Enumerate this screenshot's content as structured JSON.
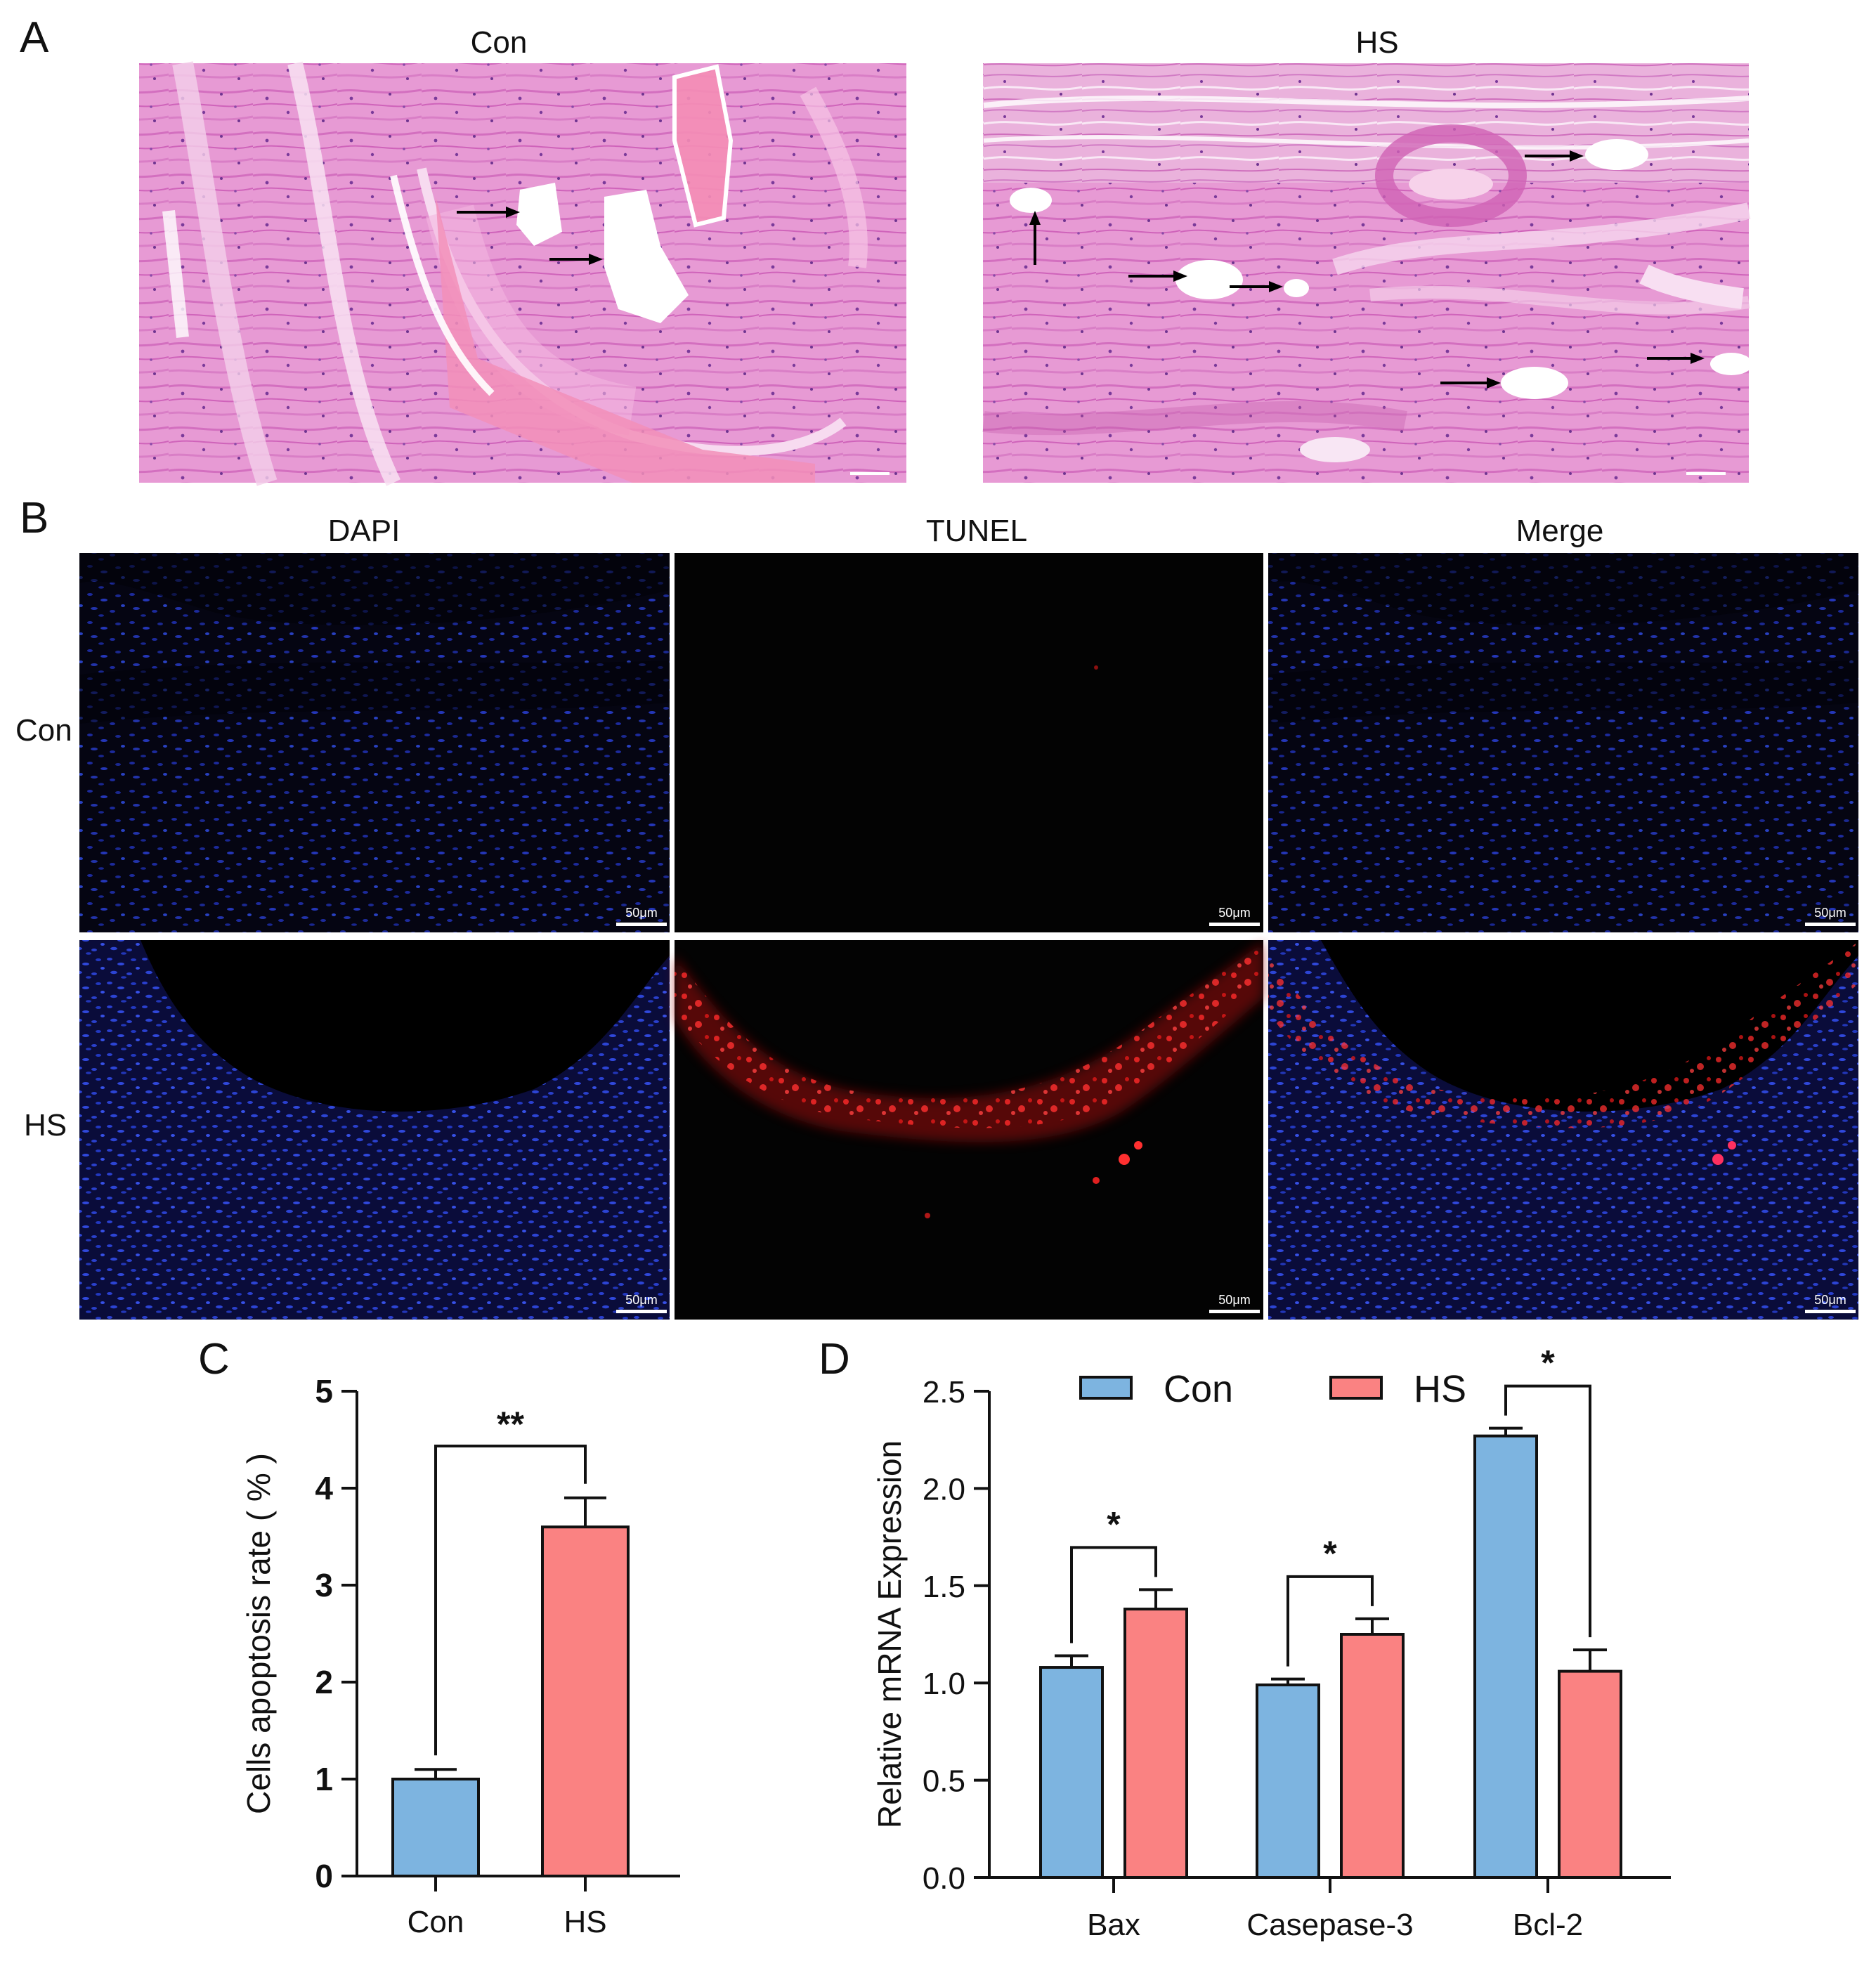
{
  "panels": {
    "a": {
      "label": "A",
      "titles": [
        "Con",
        "HS"
      ]
    },
    "b": {
      "label": "B",
      "columns": [
        "DAPI",
        "TUNEL",
        "Merge"
      ],
      "rows": [
        "Con",
        "HS"
      ],
      "scale_bar": "50μm"
    },
    "c": {
      "label": "C"
    },
    "d": {
      "label": "D"
    }
  },
  "colors": {
    "con": "#7db4e0",
    "hs": "#fa8282",
    "he_stain": "#e38fcf",
    "dapi": "#1e2f9e",
    "tunel": "#ff2222"
  },
  "chart_data": [
    {
      "type": "bar",
      "categories": [
        "Con",
        "HS"
      ],
      "values": [
        1.0,
        3.6
      ],
      "errors": [
        0.1,
        0.3
      ],
      "colors": [
        "#7db4e0",
        "#fa8282"
      ],
      "title": "",
      "xlabel": "",
      "ylabel": "Cells apoptosis rate ( % )",
      "ylim": [
        0,
        5
      ],
      "yticks": [
        "0",
        "1",
        "2",
        "3",
        "4",
        "5"
      ],
      "significance": [
        {
          "pair": [
            "Con",
            "HS"
          ],
          "label": "**"
        }
      ],
      "grid": false
    },
    {
      "type": "bar",
      "categories": [
        "Bax",
        "Casepase-3",
        "Bcl-2"
      ],
      "series": [
        {
          "name": "Con",
          "values": [
            1.08,
            0.99,
            2.27
          ],
          "errors": [
            0.06,
            0.03,
            0.04
          ],
          "color": "#7db4e0"
        },
        {
          "name": "HS",
          "values": [
            1.38,
            1.25,
            1.06
          ],
          "errors": [
            0.1,
            0.08,
            0.11
          ],
          "color": "#fa8282"
        }
      ],
      "title": "",
      "xlabel": "",
      "ylabel": "Relative mRNA Expression",
      "ylim": [
        0,
        2.5
      ],
      "yticks": [
        "0.0",
        "0.5",
        "1.0",
        "1.5",
        "2.0",
        "2.5"
      ],
      "significance": [
        {
          "category": "Bax",
          "label": "*"
        },
        {
          "category": "Casepase-3",
          "label": "*"
        },
        {
          "category": "Bcl-2",
          "label": "*"
        }
      ],
      "legend": "top",
      "grid": false
    }
  ]
}
